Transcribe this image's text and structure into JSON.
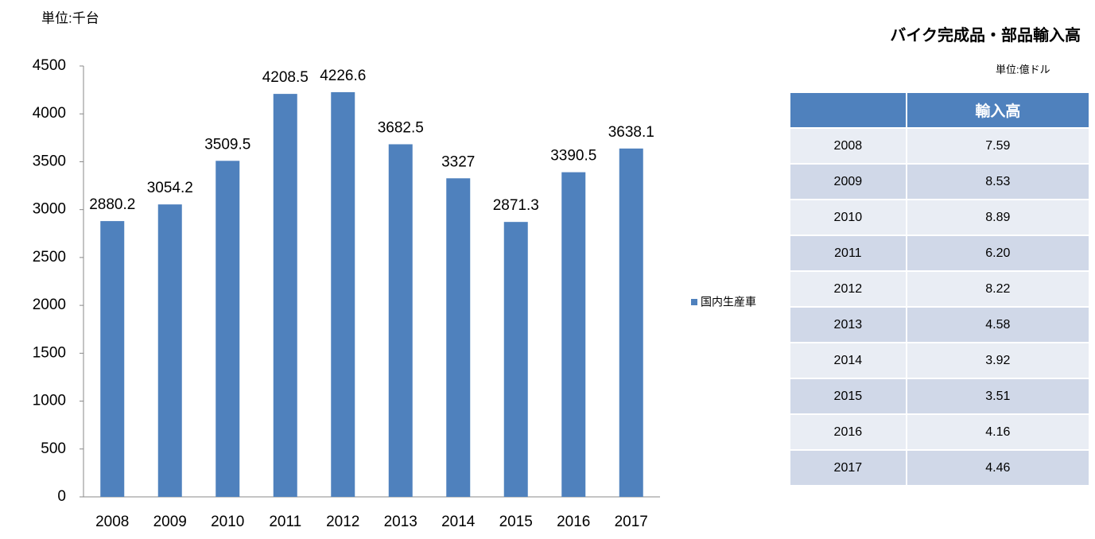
{
  "chart_data": {
    "type": "bar",
    "unit_label": "単位:千台",
    "categories": [
      "2008",
      "2009",
      "2010",
      "2011",
      "2012",
      "2013",
      "2014",
      "2015",
      "2016",
      "2017"
    ],
    "series": [
      {
        "name": "国内生産車",
        "color": "#4f81bd",
        "values": [
          2880.2,
          3054.2,
          3509.5,
          4208.5,
          4226.6,
          3682.5,
          3327,
          2871.3,
          3390.5,
          3638.1
        ]
      }
    ],
    "ylim": [
      0,
      4500
    ],
    "yticks": [
      0,
      500,
      1000,
      1500,
      2000,
      2500,
      3000,
      3500,
      4000,
      4500
    ],
    "grid": false,
    "legend": "right"
  },
  "table": {
    "title": "バイク完成品・部品輸入高",
    "unit": "単位:億ドル",
    "header": [
      "輸入高"
    ],
    "rows": [
      [
        "2008",
        "7.59"
      ],
      [
        "2009",
        "8.53"
      ],
      [
        "2010",
        "8.89"
      ],
      [
        "2011",
        "6.20"
      ],
      [
        "2012",
        "8.22"
      ],
      [
        "2013",
        "4.58"
      ],
      [
        "2014",
        "3.92"
      ],
      [
        "2015",
        "3.51"
      ],
      [
        "2016",
        "4.16"
      ],
      [
        "2017",
        "4.46"
      ]
    ]
  }
}
